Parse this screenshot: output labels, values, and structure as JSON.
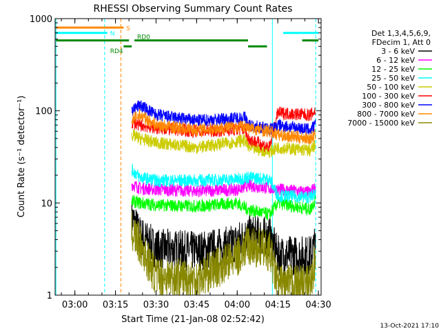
{
  "chart_data": {
    "type": "line",
    "title": "RHESSI Observing Summary Count Rates",
    "xlabel": "Start Time (21-Jan-08 02:52:42)",
    "ylabel": "Count Rate (s⁻¹ detector⁻¹)",
    "yscale": "log",
    "ylim": [
      1,
      1000
    ],
    "xlim": [
      "02:52:42",
      "04:31:00"
    ],
    "x_ticks": [
      "03:00",
      "03:15",
      "03:30",
      "03:45",
      "04:00",
      "04:15",
      "04:30"
    ],
    "y_ticks": [
      "1",
      "10",
      "100",
      "1000"
    ],
    "grid": false,
    "legend_position": "right",
    "legend_header": [
      "Det 1,3,4,5,6,9,",
      "FDecim 1, Att 0"
    ],
    "timestamp": "13-Oct-2021 17:10",
    "series": [
      {
        "name": "3 - 6 keV",
        "color": "#000000",
        "points": [
          [
            "03:21",
            7
          ],
          [
            "03:24",
            4.5
          ],
          [
            "03:30",
            3.2
          ],
          [
            "03:45",
            3.0
          ],
          [
            "03:57",
            3.4
          ],
          [
            "04:04",
            4.5
          ],
          [
            "04:12",
            4.3
          ],
          [
            "04:15",
            2.7
          ],
          [
            "04:27",
            2.7
          ],
          [
            "04:29",
            3.5
          ]
        ]
      },
      {
        "name": "6 - 12 keV",
        "color": "#ff00ff",
        "points": [
          [
            "03:21",
            16
          ],
          [
            "03:24",
            14.5
          ],
          [
            "03:30",
            14
          ],
          [
            "03:45",
            13.5
          ],
          [
            "04:00",
            14
          ],
          [
            "04:04",
            15.5
          ],
          [
            "04:15",
            14
          ],
          [
            "04:27",
            13
          ],
          [
            "04:29",
            15
          ]
        ]
      },
      {
        "name": "12 - 25 keV",
        "color": "#00ff00",
        "points": [
          [
            "03:21",
            10.5
          ],
          [
            "03:24",
            10
          ],
          [
            "03:30",
            9.5
          ],
          [
            "03:45",
            9.2
          ],
          [
            "04:00",
            10
          ],
          [
            "04:04",
            8.5
          ],
          [
            "04:12",
            7.5
          ],
          [
            "04:15",
            10
          ],
          [
            "04:27",
            8.5
          ],
          [
            "04:29",
            11
          ]
        ]
      },
      {
        "name": "25 - 50 keV",
        "color": "#00ffff",
        "points": [
          [
            "03:21",
            23
          ],
          [
            "03:24",
            19
          ],
          [
            "03:30",
            17.5
          ],
          [
            "03:45",
            17.5
          ],
          [
            "04:00",
            18
          ],
          [
            "04:04",
            19
          ],
          [
            "04:12",
            18
          ],
          [
            "04:15",
            12
          ],
          [
            "04:27",
            11.5
          ],
          [
            "04:29",
            13
          ]
        ]
      },
      {
        "name": "50 - 100 keV",
        "color": "#cccc00",
        "points": [
          [
            "03:21",
            55
          ],
          [
            "03:24",
            50
          ],
          [
            "03:30",
            45
          ],
          [
            "03:45",
            40
          ],
          [
            "03:57",
            45
          ],
          [
            "04:03",
            48
          ],
          [
            "04:04",
            40
          ],
          [
            "04:12",
            36
          ],
          [
            "04:15",
            40
          ],
          [
            "04:27",
            37
          ],
          [
            "04:29",
            42
          ]
        ]
      },
      {
        "name": "100 - 300 keV",
        "color": "#ff0000",
        "points": [
          [
            "03:21",
            75
          ],
          [
            "03:24",
            70
          ],
          [
            "03:30",
            65
          ],
          [
            "03:45",
            60
          ],
          [
            "04:03",
            63
          ],
          [
            "04:04",
            50
          ],
          [
            "04:12",
            40
          ],
          [
            "04:15",
            95
          ],
          [
            "04:27",
            90
          ],
          [
            "04:29",
            100
          ]
        ]
      },
      {
        "name": "300 - 800 keV",
        "color": "#0000ff",
        "points": [
          [
            "03:21",
            100
          ],
          [
            "03:24",
            115
          ],
          [
            "03:30",
            90
          ],
          [
            "03:45",
            78
          ],
          [
            "03:57",
            82
          ],
          [
            "04:03",
            85
          ],
          [
            "04:04",
            70
          ],
          [
            "04:12",
            63
          ],
          [
            "04:15",
            70
          ],
          [
            "04:27",
            62
          ],
          [
            "04:29",
            70
          ]
        ]
      },
      {
        "name": "800 - 7000 keV",
        "color": "#ff8800",
        "points": [
          [
            "03:21",
            80
          ],
          [
            "03:24",
            90
          ],
          [
            "03:30",
            70
          ],
          [
            "03:45",
            62
          ],
          [
            "04:03",
            68
          ],
          [
            "04:04",
            65
          ],
          [
            "04:12",
            60
          ],
          [
            "04:15",
            55
          ],
          [
            "04:27",
            50
          ],
          [
            "04:29",
            55
          ]
        ]
      },
      {
        "name": "7000 - 15000 keV",
        "color": "#888800",
        "points": [
          [
            "03:21",
            5
          ],
          [
            "03:24",
            3.5
          ],
          [
            "03:30",
            1.6
          ],
          [
            "03:45",
            1.5
          ],
          [
            "04:00",
            2.6
          ],
          [
            "04:04",
            3.5
          ],
          [
            "04:12",
            3.0
          ],
          [
            "04:15",
            1.3
          ],
          [
            "04:27",
            1.3
          ],
          [
            "04:29",
            2.5
          ]
        ]
      }
    ],
    "state_bars": [
      {
        "label": "S",
        "color": "#ff8800",
        "y": 800,
        "segments": [
          [
            "02:53",
            "03:18"
          ]
        ],
        "label_at": "03:19"
      },
      {
        "label": "N",
        "color": "#00ffff",
        "y": 700,
        "segments": [
          [
            "02:53",
            "03:12"
          ],
          [
            "04:17",
            "04:30"
          ]
        ],
        "label_at": "03:13"
      },
      {
        "label": "RD0",
        "color": "#008800",
        "y": 580,
        "segments": [
          [
            "02:53",
            "03:20"
          ],
          [
            "03:22",
            "04:04"
          ],
          [
            "04:24",
            "04:30"
          ]
        ],
        "label_at": "03:23"
      },
      {
        "label": "RD4",
        "color": "#008800",
        "y": 500,
        "segments": [
          [
            "03:18",
            "03:21"
          ],
          [
            "04:04",
            "04:11"
          ]
        ],
        "label_at": "03:13"
      }
    ],
    "vlines": [
      {
        "x": "02:53",
        "color": "#00ffff",
        "style": "solid"
      },
      {
        "x": "03:11",
        "color": "#00ffff",
        "style": "dashed"
      },
      {
        "x": "03:17",
        "color": "#ff8800",
        "style": "dashed"
      },
      {
        "x": "04:13",
        "color": "#00ffff",
        "style": "solid"
      },
      {
        "x": "04:29",
        "color": "#00ffff",
        "style": "dashed"
      }
    ]
  }
}
